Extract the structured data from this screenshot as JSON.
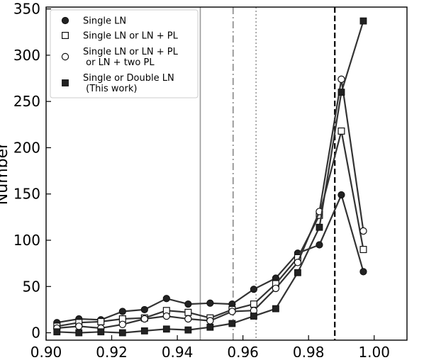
{
  "chart_data": {
    "type": "line",
    "title": "",
    "xlabel": "",
    "ylabel": "Number",
    "xlim": [
      0.9,
      1.01
    ],
    "ylim": [
      -8,
      352
    ],
    "x_ticks": [
      {
        "value": 0.9,
        "label": "0.90"
      },
      {
        "value": 0.92,
        "label": "0.92"
      },
      {
        "value": 0.94,
        "label": "0.94"
      },
      {
        "value": 0.96,
        "label": "0.96"
      },
      {
        "value": 0.98,
        "label": "0.98"
      },
      {
        "value": 1.0,
        "label": "1.00"
      }
    ],
    "y_ticks": [
      {
        "value": 0,
        "label": "0"
      },
      {
        "value": 50,
        "label": "50"
      },
      {
        "value": 100,
        "label": "100"
      },
      {
        "value": 150,
        "label": "150"
      },
      {
        "value": 200,
        "label": "200"
      },
      {
        "value": 250,
        "label": "250"
      },
      {
        "value": 300,
        "label": "300"
      },
      {
        "value": 350,
        "label": "350"
      }
    ],
    "x": [
      0.9033,
      0.91,
      0.9167,
      0.9233,
      0.93,
      0.9367,
      0.9433,
      0.95,
      0.9567,
      0.9633,
      0.97,
      0.9767,
      0.9833,
      0.99,
      0.9967
    ],
    "series": [
      {
        "name": "Single LN",
        "marker": "filled-circle",
        "values": [
          11,
          15,
          14,
          23,
          25,
          37,
          31,
          32,
          31,
          47,
          59,
          86,
          95,
          149,
          66
        ]
      },
      {
        "name": "Single LN or LN + PL",
        "marker": "open-square",
        "values": [
          7,
          11,
          12,
          15,
          16,
          24,
          22,
          16,
          25,
          31,
          53,
          81,
          127,
          218,
          90
        ]
      },
      {
        "name": "Single LN or LN + PL\n or LN + two PL",
        "marker": "open-circle",
        "values": [
          5,
          7,
          5,
          9,
          15,
          18,
          15,
          13,
          23,
          24,
          48,
          76,
          131,
          274,
          110
        ]
      },
      {
        "name": "Single or Double LN\n (This work)",
        "marker": "filled-square",
        "values": [
          1,
          0,
          1,
          0,
          2,
          4,
          3,
          6,
          10,
          18,
          26,
          65,
          114,
          260,
          337
        ]
      }
    ],
    "vertical_lines": [
      {
        "x": 0.947,
        "style": "solid",
        "color": "#999999"
      },
      {
        "x": 0.957,
        "style": "dashdot",
        "color": "#888888"
      },
      {
        "x": 0.964,
        "style": "dotted",
        "color": "#999999"
      },
      {
        "x": 0.988,
        "style": "dashed",
        "color": "#000000"
      }
    ],
    "line_color": "#333333",
    "legend_position": "top-left",
    "grid": false
  }
}
